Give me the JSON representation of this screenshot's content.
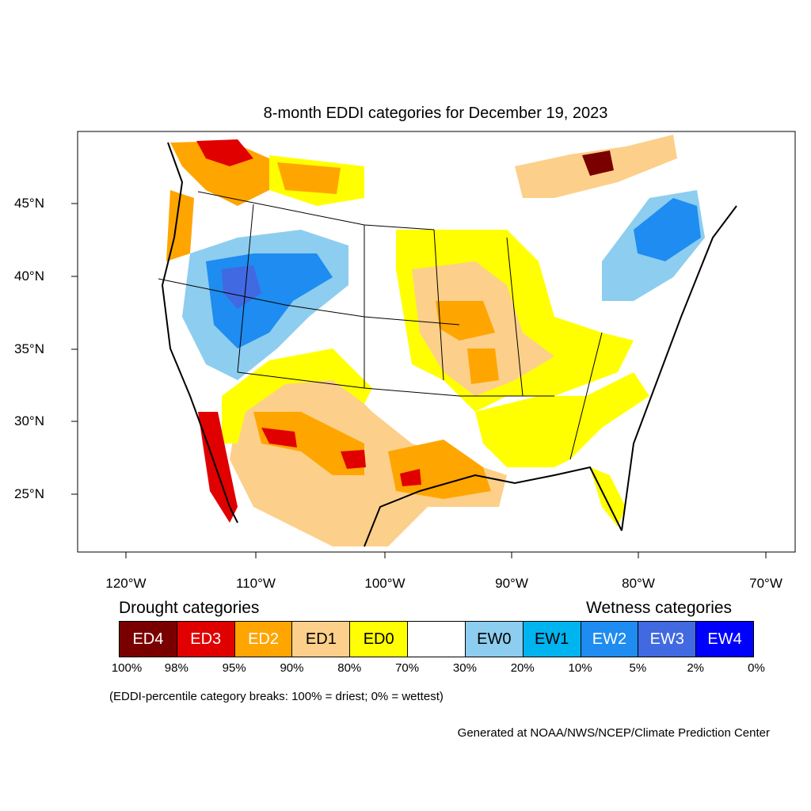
{
  "title": "8-month EDDI categories for December 19, 2023",
  "axes": {
    "lat_labels": [
      "45°N",
      "40°N",
      "35°N",
      "30°N",
      "25°N"
    ],
    "lon_labels": [
      "120°W",
      "110°W",
      "100°W",
      "90°W",
      "80°W",
      "70°W"
    ]
  },
  "legend": {
    "drought_heading": "Drought categories",
    "wetness_heading": "Wetness categories",
    "categories": [
      {
        "label": "ED4",
        "color": "#7a0000",
        "text_color": "#ffffff"
      },
      {
        "label": "ED3",
        "color": "#e00000",
        "text_color": "#ffffff"
      },
      {
        "label": "ED2",
        "color": "#ffa500",
        "text_color": "#ffffff"
      },
      {
        "label": "ED1",
        "color": "#fcd08a",
        "text_color": "#000000"
      },
      {
        "label": "ED0",
        "color": "#ffff00",
        "text_color": "#000000"
      },
      {
        "label": "",
        "color": "#ffffff",
        "text_color": "#000000"
      },
      {
        "label": "EW0",
        "color": "#8dcdef",
        "text_color": "#000000"
      },
      {
        "label": "EW1",
        "color": "#00b4f0",
        "text_color": "#000000"
      },
      {
        "label": "EW2",
        "color": "#1e8cf0",
        "text_color": "#ffffff"
      },
      {
        "label": "EW3",
        "color": "#4169e1",
        "text_color": "#ffffff"
      },
      {
        "label": "EW4",
        "color": "#0000ff",
        "text_color": "#ffffff"
      }
    ],
    "percentiles": [
      "100%",
      "98%",
      "95%",
      "90%",
      "80%",
      "70%",
      "30%",
      "20%",
      "10%",
      "5%",
      "2%",
      "0%"
    ]
  },
  "note": "(EDDI-percentile category breaks: 100% = driest; 0% = wettest)",
  "credit": "Generated at NOAA/NWS/NCEP/Climate Prediction Center"
}
